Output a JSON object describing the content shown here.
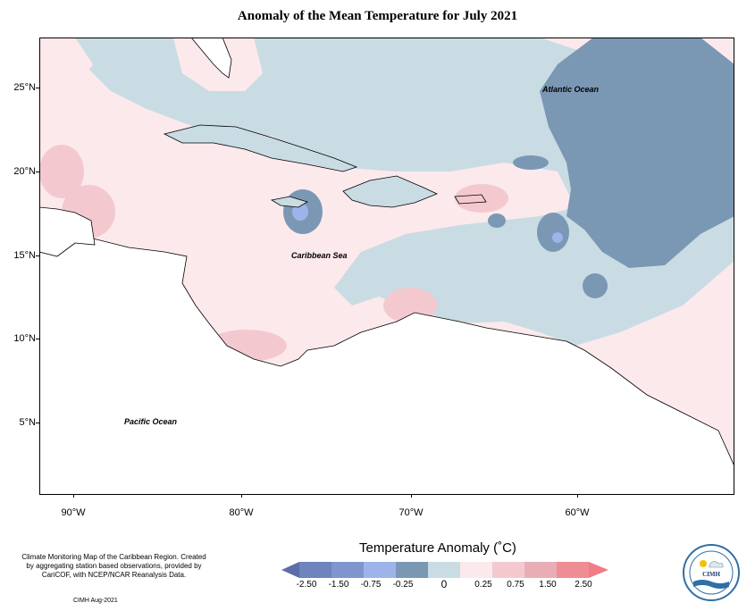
{
  "title": "Anomaly of the Mean Temperature for July 2021",
  "map": {
    "lat_labels": [
      "25°N",
      "20°N",
      "15°N",
      "10°N",
      "5°N"
    ],
    "lon_labels": [
      "90°W",
      "80°W",
      "70°W",
      "60°W"
    ],
    "labels": {
      "atlantic": "Atlantic Ocean",
      "caribbean": "Caribbean Sea",
      "pacific": "Pacific Ocean"
    },
    "colors": {
      "cat_-2.50": "#5a6ea8",
      "cat_-1.50": "#7f95cd",
      "cat_-0.75": "#9db3ea",
      "cat_-0.25": "#7a98b4",
      "cat_0": "#c9dce3",
      "cat_0.25": "#fce9ec",
      "cat_0.75": "#f3c9cf",
      "cat_1.50": "#e9aeb5",
      "cat_2.50": "#ef8d96",
      "land": "#ffffff"
    }
  },
  "credits": {
    "text": "Climate Monitoring Map of the Caribbean Region. Created by aggregating station based observations, provided by CariCOF, with NCEP/NCAR Reanalysis Data.",
    "date": "CIMH Aug-2021"
  },
  "legend": {
    "title": "Temperature Anomaly (˚C)",
    "labels": [
      "-2.50",
      "-1.50",
      "-0.75",
      "-0.25",
      "0",
      "0.25",
      "0.75",
      "1.50",
      "2.50"
    ]
  },
  "logo": {
    "name": "CIMH"
  }
}
